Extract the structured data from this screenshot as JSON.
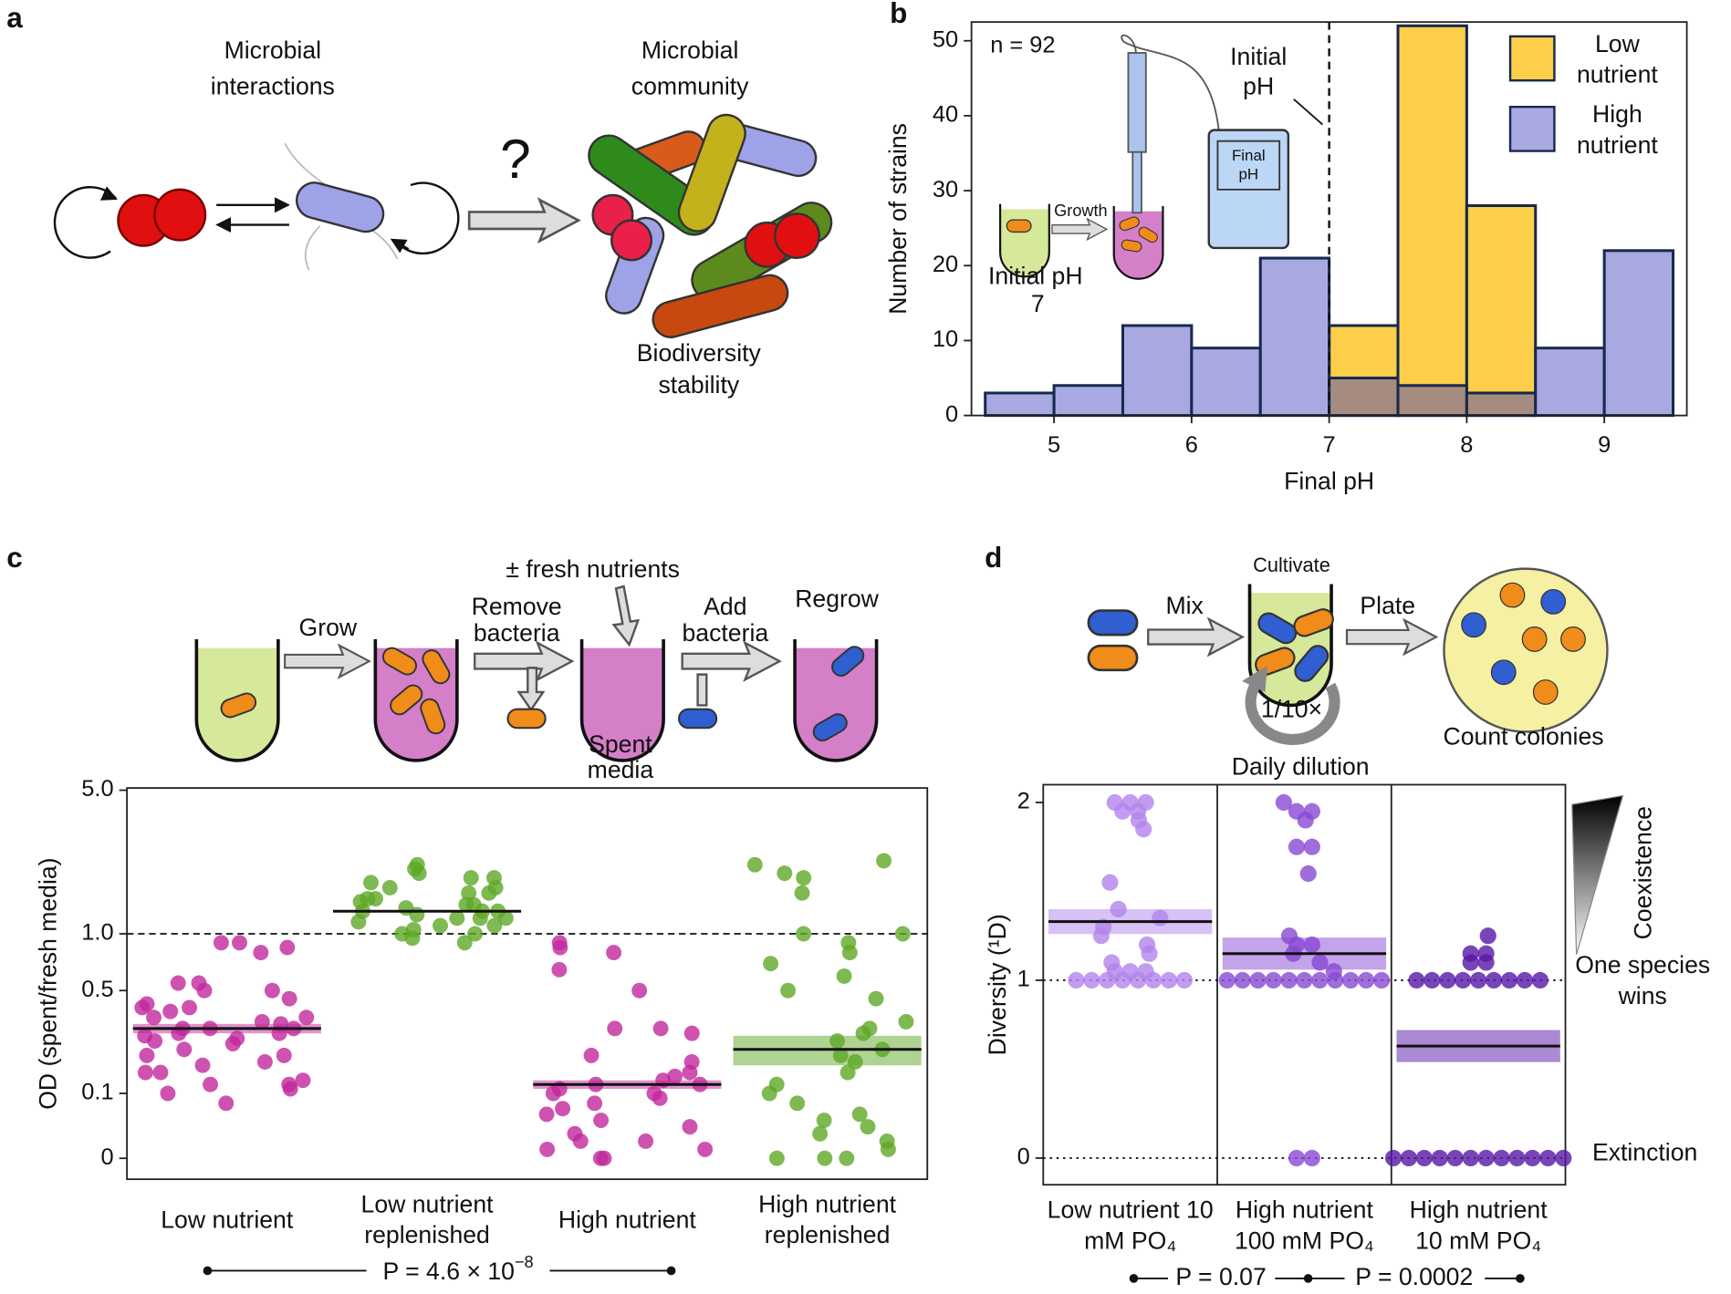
{
  "panels": [
    "a",
    "b",
    "c",
    "d"
  ],
  "diagram_a": {
    "left_label": [
      "Microbial",
      "interactions"
    ],
    "right_label": [
      "Microbial",
      "community"
    ],
    "question": "?",
    "bottom_label": [
      "Biodiversity",
      "stability"
    ]
  },
  "inset_b": {
    "growth": "Growth",
    "initial_label": [
      "Initial pH",
      "7"
    ],
    "meter_label": [
      "Final",
      "pH"
    ]
  },
  "diagram_c": {
    "grow": "Grow",
    "remove": [
      "Remove",
      "bacteria"
    ],
    "fresh": "± fresh nutrients",
    "add": [
      "Add",
      "bacteria"
    ],
    "regrow": "Regrow",
    "spent": [
      "Spent",
      "media"
    ]
  },
  "diagram_d": {
    "mix": "Mix",
    "cultivate": "Cultivate",
    "plate": "Plate",
    "dilution_factor": "1/10×",
    "dilution": "Daily dilution",
    "count": "Count colonies"
  },
  "chart_data": [
    {
      "type": "histogram",
      "xlabel": "Final pH",
      "ylabel": "Number of strains",
      "annotation": "n = 92",
      "bins": [
        4.5,
        5,
        5.5,
        6,
        6.5,
        7,
        7.5,
        8,
        8.5,
        9,
        9.5
      ],
      "series": [
        {
          "name": "Low nutrient",
          "color": "#fcce4a",
          "values": [
            0,
            0,
            0,
            0,
            0,
            12,
            52,
            28,
            0,
            0
          ]
        },
        {
          "name": "High nutrient",
          "color": "#a9a9e2",
          "values": [
            3,
            4,
            12,
            9,
            21,
            5,
            4,
            3,
            9,
            22
          ]
        }
      ],
      "overlap_color": "#a68c80",
      "edge_color": "#17294d",
      "xlim": [
        4.4,
        9.6
      ],
      "ylim": [
        0,
        52.5
      ],
      "xticks": [
        5,
        6,
        7,
        8,
        9
      ],
      "yticks": [
        0,
        10,
        20,
        30,
        40,
        50
      ],
      "reference_line": {
        "value": 7,
        "label": [
          "Initial",
          "pH"
        ]
      },
      "legend": "upper right"
    },
    {
      "type": "strip",
      "ylabel": "OD (spent/fresh media)",
      "yscale": "symlog",
      "categories": [
        "Low nutrient",
        "Low nutrient replenished",
        "High nutrient",
        "High nutrient replenished"
      ],
      "colors": [
        "#c2289c",
        "#5ea727",
        "#c2289c",
        "#5ea727"
      ],
      "points": [
        [
          0.9,
          0.9,
          0.85,
          0.8,
          0.55,
          0.5,
          0.55,
          0.5,
          0.45,
          0.42,
          0.4,
          0.4,
          0.38,
          0.35,
          0.35,
          0.33,
          0.32,
          0.3,
          0.3,
          0.3,
          0.28,
          0.28,
          0.27,
          0.26,
          0.25,
          0.24,
          0.22,
          0.2,
          0.2,
          0.18,
          0.17,
          0.15,
          0.15,
          0.13,
          0.12,
          0.12,
          0.11,
          0.1,
          0.08
        ],
        [
          2.2,
          2.1,
          2.0,
          1.9,
          1.9,
          1.8,
          1.7,
          1.7,
          1.6,
          1.6,
          1.5,
          1.5,
          1.45,
          1.4,
          1.4,
          1.35,
          1.3,
          1.3,
          1.3,
          1.25,
          1.2,
          1.2,
          1.2,
          1.15,
          1.1,
          1.1,
          1.05,
          1.0,
          1.0,
          0.95,
          0.9
        ],
        [
          0.85,
          0.9,
          0.8,
          0.65,
          0.5,
          0.3,
          0.28,
          0.3,
          0.2,
          0.18,
          0.15,
          0.14,
          0.13,
          0.12,
          0.12,
          0.11,
          0.1,
          0.1,
          0.09,
          0.08,
          0.07,
          0.06,
          0.05,
          0.04,
          0.03,
          0.02,
          0.02,
          0.01,
          0.01,
          0,
          0
        ],
        [
          2.3,
          2.2,
          2.0,
          1.9,
          1.6,
          1.0,
          1.0,
          0.9,
          0.8,
          0.7,
          0.6,
          0.5,
          0.45,
          0.33,
          0.3,
          0.28,
          0.25,
          0.22,
          0.2,
          0.18,
          0.15,
          0.12,
          0.1,
          0.08,
          0.06,
          0.05,
          0.04,
          0.03,
          0.02,
          0.01,
          0,
          0,
          0
        ]
      ],
      "medians": [
        0.3,
        1.3,
        0.12,
        0.22
      ],
      "intervals": [
        [
          0.28,
          0.32
        ],
        null,
        [
          0.11,
          0.13
        ],
        [
          0.17,
          0.27
        ]
      ],
      "ylim": [
        0,
        5
      ],
      "yticks": [
        0,
        0.1,
        0.5,
        {
          "value": 1,
          "label": "1.0"
        },
        {
          "value": 5,
          "label": "5.0"
        }
      ],
      "reference_lines": [
        1
      ],
      "pvalues": [
        {
          "text": "P = 4.6 × 10",
          "exponent": "−8"
        }
      ]
    },
    {
      "type": "strip",
      "ylabel": "Diversity (¹D)",
      "categories": [
        "Low nutrient 10 mM PO₄",
        "High nutrient 100 mM PO₄",
        "High nutrient 10 mM PO₄"
      ],
      "colors": [
        "#b283ec",
        "#8748d3",
        "#5616a6"
      ],
      "points": [
        [
          2,
          2,
          2,
          1.95,
          1.95,
          1.9,
          1.85,
          1.55,
          1.4,
          1.35,
          1.3,
          1.25,
          1.2,
          1.15,
          1.1,
          1.05,
          1.05,
          1.05,
          1,
          1,
          1,
          1,
          1,
          1,
          1,
          1
        ],
        [
          2,
          1.95,
          1.95,
          1.9,
          1.75,
          1.75,
          1.6,
          1.25,
          1.2,
          1.2,
          1.15,
          1.1,
          1.05,
          1,
          1,
          1,
          1,
          1,
          1,
          1,
          1,
          1,
          1,
          1,
          0,
          0
        ],
        [
          1.25,
          1.15,
          1.15,
          1.1,
          1.1,
          1,
          1,
          1,
          1,
          1,
          1,
          1,
          1,
          1,
          0,
          0,
          0,
          0,
          0,
          0,
          0,
          0,
          0,
          0,
          0,
          0
        ]
      ],
      "medians": [
        1.33,
        1.15,
        0.63
      ],
      "intervals": [
        [
          1.26,
          1.4
        ],
        [
          1.06,
          1.24
        ],
        [
          0.54,
          0.72
        ]
      ],
      "ylim": [
        -0.15,
        2.1
      ],
      "yticks": [
        0,
        1,
        2
      ],
      "reference_lines": [
        0,
        1
      ],
      "scale_annotations": [
        "Coexistence",
        "One species wins",
        "Extinction"
      ],
      "pvalues": [
        {
          "text": "P = 0.07"
        },
        {
          "text": "P = 0.0002"
        }
      ]
    }
  ]
}
